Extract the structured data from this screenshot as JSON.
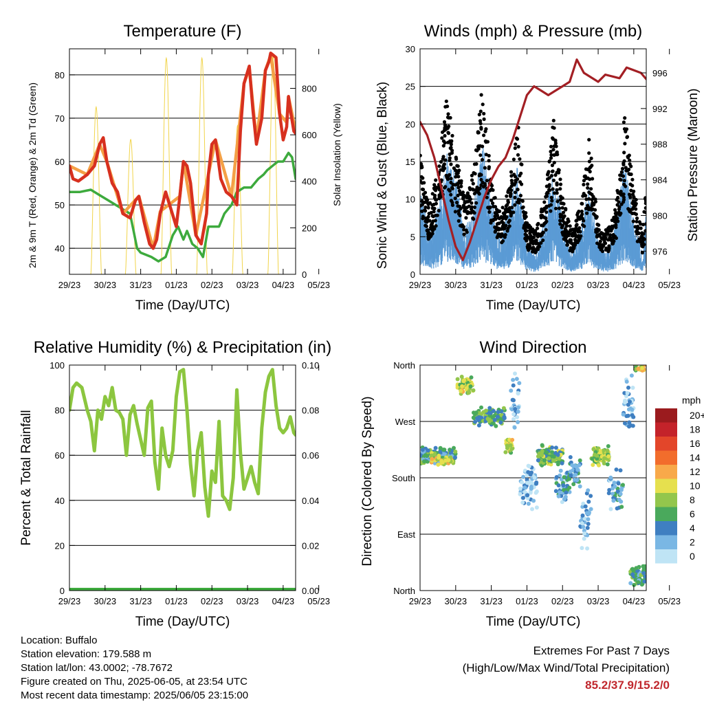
{
  "chart_data": [
    {
      "id": "temperature",
      "type": "line",
      "title": "Temperature (F)",
      "xlabel": "Time (Day/UTC)",
      "ylabel": "2m & 9m T (Red, Orange) & 2m Td (Green)",
      "y2label": "Solar Insolation (Yellow)",
      "x_ticks": [
        "29/23",
        "30/23",
        "31/23",
        "01/23",
        "02/23",
        "03/23",
        "04/23",
        "05/23"
      ],
      "x_range_days": [
        0,
        6.35
      ],
      "ylim": [
        34,
        86
      ],
      "y_ticks": [
        40,
        50,
        60,
        70,
        80
      ],
      "y2lim": [
        0,
        970
      ],
      "y2_ticks": [
        0,
        200,
        400,
        600,
        800
      ],
      "grid": true,
      "series": [
        {
          "color": "#d7301f",
          "x": [
            0,
            0.1,
            0.25,
            0.5,
            0.7,
            0.85,
            0.95,
            1.05,
            1.2,
            1.35,
            1.5,
            1.7,
            1.85,
            1.95,
            2.1,
            2.25,
            2.35,
            2.45,
            2.55,
            2.7,
            2.85,
            3.0,
            3.1,
            3.2,
            3.3,
            3.4,
            3.55,
            3.7,
            3.85,
            3.9,
            4.0,
            4.1,
            4.25,
            4.4,
            4.55,
            4.7,
            4.8,
            4.9,
            5.05,
            5.15,
            5.25,
            5.4,
            5.5,
            5.6,
            5.65,
            5.8,
            5.9,
            6.0,
            6.1,
            6.15,
            6.2,
            6.3,
            6.35
          ],
          "y": [
            59,
            56,
            55.5,
            57,
            59,
            64,
            65.5,
            60,
            55,
            53,
            48,
            47,
            51,
            52,
            46,
            41,
            40,
            42,
            48,
            53,
            49,
            45,
            52,
            60,
            59,
            55,
            43,
            41,
            48,
            57,
            64,
            65,
            56,
            53,
            52,
            50,
            67,
            78,
            82,
            72,
            64,
            70,
            81,
            83,
            85,
            84,
            71,
            65,
            68,
            75,
            72,
            67,
            66.5
          ]
        },
        {
          "color": "#f4a046",
          "x": [
            0,
            0.5,
            0.85,
            1.05,
            1.5,
            1.95,
            2.35,
            2.55,
            3.1,
            3.2,
            3.55,
            3.9,
            4.1,
            4.55,
            4.9,
            5.05,
            5.25,
            5.5,
            5.65,
            5.9,
            6.1,
            6.15,
            6.35
          ],
          "y": [
            59,
            57,
            64,
            60,
            48,
            52,
            40,
            48.5,
            52,
            60,
            43,
            57,
            65,
            52,
            78,
            81.5,
            65,
            81,
            84.5,
            71,
            69,
            75,
            67
          ]
        },
        {
          "color": "#3daa3d",
          "x": [
            0,
            0.3,
            0.6,
            0.9,
            1.1,
            1.3,
            1.5,
            1.7,
            1.8,
            1.9,
            2.0,
            2.15,
            2.3,
            2.5,
            2.7,
            2.9,
            3.05,
            3.2,
            3.3,
            3.45,
            3.6,
            3.75,
            3.9,
            4.05,
            4.2,
            4.35,
            4.55,
            4.7,
            4.9,
            5.1,
            5.3,
            5.45,
            5.55,
            5.7,
            5.85,
            6.0,
            6.15,
            6.25,
            6.35
          ],
          "y": [
            53,
            53,
            53.5,
            52,
            51,
            50,
            49,
            48,
            44,
            40,
            39,
            38.5,
            38,
            37,
            38,
            43,
            45,
            42,
            44,
            41,
            40,
            38,
            45,
            45,
            45,
            48,
            50,
            53,
            54,
            54,
            56,
            57,
            58,
            59,
            60,
            60,
            62,
            61,
            56
          ]
        }
      ],
      "insolation": {
        "color": "#f1d44a",
        "peaks": [
          {
            "x": 0.75,
            "y": 720
          },
          {
            "x": 1.72,
            "y": 580
          },
          {
            "x": 2.72,
            "y": 930
          },
          {
            "x": 3.72,
            "y": 930
          },
          {
            "x": 4.72,
            "y": 640
          },
          {
            "x": 5.72,
            "y": 940
          }
        ],
        "half_width_days": 0.15
      }
    },
    {
      "id": "winds",
      "type": "scatter",
      "title": "Winds (mph) & Pressure (mb)",
      "xlabel": "Time (Day/UTC)",
      "ylabel": "Sonic Wind & Gust (Blue, Black)",
      "y2label": "Station Pressure (Maroon)",
      "x_ticks": [
        "29/23",
        "30/23",
        "31/23",
        "01/23",
        "02/23",
        "03/23",
        "04/23",
        "05/23"
      ],
      "x_range_days": [
        0,
        6.35
      ],
      "ylim": [
        0,
        30
      ],
      "y_ticks": [
        0,
        5,
        10,
        15,
        20,
        25,
        30
      ],
      "y2lim": [
        973.4,
        998.7
      ],
      "y2_ticks": [
        976,
        980,
        984,
        988,
        992,
        996
      ],
      "grid": true,
      "wind_daily_envelope": {
        "x": [
          0,
          0.25,
          0.5,
          0.75,
          1.0,
          1.25,
          1.5,
          1.75,
          2.0,
          2.25,
          2.5,
          2.75,
          3.0,
          3.25,
          3.5,
          3.75,
          4.0,
          4.25,
          4.5,
          4.75,
          5.0,
          5.25,
          5.5,
          5.75,
          6.0,
          6.25,
          6.35
        ],
        "sustained": [
          8,
          4,
          6,
          11,
          9,
          4,
          6,
          12,
          7,
          3,
          6,
          10,
          3,
          2,
          5,
          10,
          5,
          2,
          4,
          8,
          3,
          2,
          5,
          10,
          5,
          2,
          6
        ],
        "gust": [
          14,
          8,
          12,
          21,
          14,
          9,
          12,
          22,
          11,
          7,
          10,
          18,
          6,
          5,
          9,
          18,
          9,
          5,
          8,
          16,
          6,
          5,
          8,
          19,
          10,
          5,
          11
        ]
      },
      "wind_color": "#5b9bd5",
      "gust_color": "#000000",
      "pressure": {
        "color": "#a31f24",
        "x": [
          0,
          0.2,
          0.4,
          0.6,
          0.8,
          1.0,
          1.2,
          1.4,
          1.6,
          1.8,
          2.0,
          2.2,
          2.4,
          2.6,
          2.8,
          3.0,
          3.2,
          3.4,
          3.6,
          3.8,
          4.0,
          4.2,
          4.4,
          4.6,
          4.8,
          5.0,
          5.2,
          5.4,
          5.6,
          5.8,
          6.0,
          6.2,
          6.35
        ],
        "y": [
          990.5,
          989,
          986.5,
          983,
          979.5,
          976.5,
          975,
          977,
          979.5,
          982,
          984,
          985.5,
          986.5,
          988.5,
          991,
          993.5,
          994.5,
          994,
          993.5,
          994,
          994.5,
          995,
          997.5,
          996,
          995.5,
          995,
          995.8,
          995.6,
          995.4,
          996.6,
          996.3,
          996,
          995.3
        ]
      }
    },
    {
      "id": "humidity",
      "type": "line",
      "title": "Relative Humidity (%) & Precipitation (in)",
      "xlabel": "Time (Day/UTC)",
      "ylabel": "Percent & Total Rainfall",
      "x_ticks": [
        "29/23",
        "30/23",
        "31/23",
        "01/23",
        "02/23",
        "03/23",
        "04/23",
        "05/23"
      ],
      "x_range_days": [
        0,
        6.35
      ],
      "ylim": [
        0,
        100
      ],
      "y_ticks": [
        0,
        20,
        40,
        60,
        80,
        100
      ],
      "y2lim": [
        0,
        0.1
      ],
      "y2_ticks": [
        "0.00",
        "0.02",
        "0.04",
        "0.06",
        "0.08",
        "0.10"
      ],
      "grid": true,
      "series": [
        {
          "color": "#8cc63f",
          "x": [
            0,
            0.1,
            0.2,
            0.35,
            0.5,
            0.6,
            0.7,
            0.8,
            0.9,
            1.0,
            1.1,
            1.2,
            1.3,
            1.4,
            1.5,
            1.6,
            1.7,
            1.8,
            1.9,
            2.0,
            2.1,
            2.2,
            2.3,
            2.4,
            2.5,
            2.6,
            2.7,
            2.8,
            2.9,
            3.0,
            3.1,
            3.2,
            3.3,
            3.4,
            3.5,
            3.6,
            3.7,
            3.8,
            3.9,
            4.0,
            4.1,
            4.2,
            4.3,
            4.4,
            4.5,
            4.6,
            4.7,
            4.8,
            4.9,
            5.0,
            5.1,
            5.2,
            5.3,
            5.4,
            5.5,
            5.6,
            5.7,
            5.8,
            5.9,
            6.0,
            6.1,
            6.2,
            6.3,
            6.35
          ],
          "y": [
            80,
            90,
            92,
            90,
            80,
            75,
            62,
            80,
            76,
            86,
            82,
            90,
            80,
            79,
            76,
            60,
            78,
            82,
            74,
            67,
            60,
            81,
            84,
            57,
            45,
            72,
            60,
            55,
            62,
            86,
            97,
            98,
            80,
            56,
            42,
            62,
            70,
            46,
            33,
            53,
            48,
            75,
            42,
            40,
            36,
            50,
            89,
            61,
            45,
            50,
            55,
            48,
            43,
            72,
            88,
            95,
            98,
            82,
            72,
            70,
            72,
            77,
            70,
            69
          ]
        }
      ],
      "precipitation": {
        "color": "#3daa3d",
        "x": [
          0,
          6.35
        ],
        "y": [
          0,
          0
        ]
      }
    },
    {
      "id": "wind_direction",
      "type": "scatter",
      "title": "Wind Direction",
      "xlabel": "Time (Day/UTC)",
      "ylabel": "Direction (Colored By Speed)",
      "x_ticks": [
        "29/23",
        "30/23",
        "31/23",
        "01/23",
        "02/23",
        "03/23",
        "04/23",
        "05/23"
      ],
      "x_range_days": [
        0,
        6.35
      ],
      "ylim_deg": [
        0,
        360
      ],
      "y_ticks": [
        {
          "deg": 0,
          "label": "North"
        },
        {
          "deg": 90,
          "label": "East"
        },
        {
          "deg": 180,
          "label": "South"
        },
        {
          "deg": 270,
          "label": "West"
        },
        {
          "deg": 360,
          "label": "North"
        }
      ],
      "grid": true,
      "legend_title": "mph",
      "legend": [
        {
          "label": "20+",
          "color": "#9b1b1e"
        },
        {
          "label": "18",
          "color": "#c4232a"
        },
        {
          "label": "16",
          "color": "#e3462a"
        },
        {
          "label": "14",
          "color": "#f26d2c"
        },
        {
          "label": "12",
          "color": "#f8a94a"
        },
        {
          "label": "10",
          "color": "#e6e04e"
        },
        {
          "label": "8",
          "color": "#93c64c"
        },
        {
          "label": "6",
          "color": "#4aa95c"
        },
        {
          "label": "4",
          "color": "#3f7fc1"
        },
        {
          "label": "2",
          "color": "#7ab7e4"
        },
        {
          "label": "0",
          "color": "#bfe4f5"
        }
      ],
      "legend_placement": "right",
      "clusters": [
        {
          "x0": 0.0,
          "x1": 1.0,
          "deg_center": 215,
          "deg_spread": 14,
          "speed": 5,
          "count": 150
        },
        {
          "x0": 0.3,
          "x1": 0.9,
          "deg_center": 210,
          "deg_spread": 10,
          "speed": 10,
          "count": 40
        },
        {
          "x0": 1.05,
          "x1": 1.5,
          "deg_center": 328,
          "deg_spread": 14,
          "speed": 9,
          "count": 70
        },
        {
          "x0": 1.5,
          "x1": 2.4,
          "deg_center": 278,
          "deg_spread": 16,
          "speed": 6,
          "count": 90
        },
        {
          "x0": 2.4,
          "x1": 2.6,
          "deg_center": 235,
          "deg_spread": 18,
          "speed": 9,
          "count": 25
        },
        {
          "x0": 2.55,
          "x1": 2.8,
          "deg_center": 300,
          "deg_spread": 50,
          "speed": 2,
          "count": 30
        },
        {
          "x0": 2.8,
          "x1": 3.3,
          "deg_center": 170,
          "deg_spread": 45,
          "speed": 1,
          "count": 60
        },
        {
          "x0": 3.3,
          "x1": 4.0,
          "deg_center": 215,
          "deg_spread": 18,
          "speed": 7,
          "count": 110
        },
        {
          "x0": 3.8,
          "x1": 4.2,
          "deg_center": 170,
          "deg_spread": 30,
          "speed": 3,
          "count": 40
        },
        {
          "x0": 4.2,
          "x1": 4.5,
          "deg_center": 190,
          "deg_spread": 25,
          "speed": 4,
          "count": 40
        },
        {
          "x0": 4.5,
          "x1": 4.8,
          "deg_center": 120,
          "deg_spread": 60,
          "speed": 2,
          "count": 35
        },
        {
          "x0": 4.8,
          "x1": 5.3,
          "deg_center": 215,
          "deg_spread": 20,
          "speed": 8,
          "count": 80
        },
        {
          "x0": 5.3,
          "x1": 5.7,
          "deg_center": 160,
          "deg_spread": 40,
          "speed": 3,
          "count": 40
        },
        {
          "x0": 5.7,
          "x1": 6.0,
          "deg_center": 300,
          "deg_spread": 60,
          "speed": 2,
          "count": 40
        },
        {
          "x0": 5.9,
          "x1": 6.35,
          "deg_center": 25,
          "deg_spread": 20,
          "speed": 5,
          "count": 70
        },
        {
          "x0": 6.05,
          "x1": 6.35,
          "deg_center": 355,
          "deg_spread": 8,
          "speed": 9,
          "count": 20
        }
      ]
    }
  ],
  "station": {
    "location": "Location: Buffalo",
    "elevation": "Station elevation: 179.588 m",
    "latlon": "Station lat/lon: 43.0002; -78.7672",
    "created": "Figure created on Thu, 2025-06-05, at 23:54 UTC",
    "latest": "Most recent data timestamp: 2025/06/05 23:15:00"
  },
  "extremes": {
    "heading": "Extremes For Past 7 Days",
    "subheading": "(High/Low/Max Wind/Total Precipitation)",
    "values": "85.2/37.9/15.2/0"
  }
}
